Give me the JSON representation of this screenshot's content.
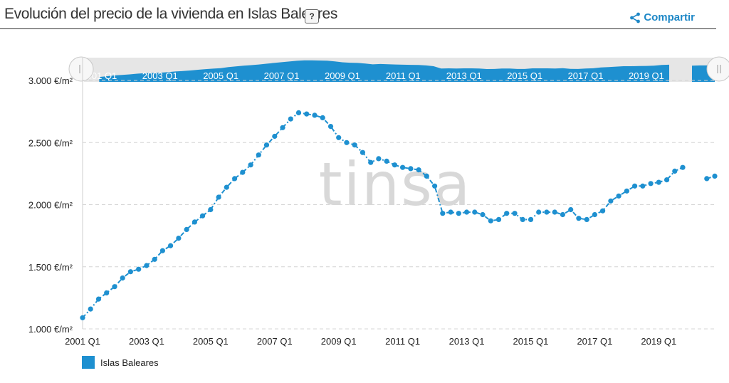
{
  "header": {
    "title": "Evolución del precio de la vivienda en Islas Baleares",
    "help_label": "?",
    "share_label": "Compartir"
  },
  "watermark": "tinsa",
  "colors": {
    "series": "#1e90d0",
    "navigator_fill": "#1e90d0",
    "navigator_bg": "#e6e6e6",
    "share": "#1e88c7"
  },
  "icons": {
    "share": "share-icon",
    "help": "help-icon"
  },
  "chart_data": {
    "type": "line",
    "title": "Evolución del precio de la vivienda en Islas Baleares",
    "xlabel": "",
    "ylabel": "",
    "ylim": [
      1000,
      3000
    ],
    "yticks": [
      "1.000 €/m²",
      "1.500 €/m²",
      "2.000 €/m²",
      "2.500 €/m²",
      "3.000 €/m²"
    ],
    "ytick_values": [
      1000,
      1500,
      2000,
      2500,
      3000
    ],
    "xticks": [
      "2001 Q1",
      "2003 Q1",
      "2005 Q1",
      "2007 Q1",
      "2009 Q1",
      "2011 Q1",
      "2013 Q1",
      "2015 Q1",
      "2017 Q1",
      "2019 Q1"
    ],
    "xtick_years": [
      2001,
      2003,
      2005,
      2007,
      2009,
      2011,
      2013,
      2015,
      2017,
      2019
    ],
    "x_range": [
      2001.0,
      2020.75
    ],
    "grid": "horizontal dashed",
    "legend": "bottom-left",
    "series": [
      {
        "name": "Islas Baleares",
        "start": "2001 Q1",
        "frequency": "quarterly",
        "line_style": "dash-dot",
        "values": [
          1090,
          1160,
          1240,
          1290,
          1340,
          1410,
          1460,
          1480,
          1510,
          1560,
          1630,
          1670,
          1730,
          1800,
          1860,
          1910,
          1960,
          2060,
          2140,
          2210,
          2260,
          2320,
          2400,
          2480,
          2550,
          2620,
          2690,
          2740,
          2730,
          2720,
          2700,
          2630,
          2540,
          2500,
          2480,
          2420,
          2340,
          2370,
          2350,
          2320,
          2300,
          2290,
          2280,
          2230,
          2150,
          1930,
          1940,
          1930,
          1940,
          1940,
          1920,
          1870,
          1880,
          1930,
          1930,
          1880,
          1880,
          1940,
          1940,
          1940,
          1920,
          1960,
          1890,
          1880,
          1920,
          1950,
          2030,
          2070,
          2110,
          2150,
          2150,
          2170,
          2180,
          2200,
          2270,
          2300,
          null,
          null,
          2210,
          2230
        ],
        "segment_break_after": "2019 Q4"
      }
    ]
  }
}
